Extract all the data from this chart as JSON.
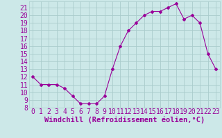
{
  "x": [
    0,
    1,
    2,
    3,
    4,
    5,
    6,
    7,
    8,
    9,
    10,
    11,
    12,
    13,
    14,
    15,
    16,
    17,
    18,
    19,
    20,
    21,
    22,
    23
  ],
  "y": [
    12,
    11,
    11,
    11,
    10.5,
    9.5,
    8.5,
    8.5,
    8.5,
    9.5,
    13,
    16,
    18,
    19,
    20,
    20.5,
    20.5,
    21,
    21.5,
    19.5,
    20,
    19,
    15,
    13
  ],
  "line_color": "#990099",
  "marker": "D",
  "marker_size": 2.0,
  "bg_color": "#cce8e8",
  "grid_color": "#aacccc",
  "xlabel": "Windchill (Refroidissement éolien,°C)",
  "xlabel_color": "#990099",
  "xlabel_fontsize": 7.5,
  "tick_color": "#990099",
  "tick_fontsize": 7,
  "ylim": [
    8,
    21.8
  ],
  "xlim": [
    -0.5,
    23.5
  ],
  "yticks": [
    8,
    9,
    10,
    11,
    12,
    13,
    14,
    15,
    16,
    17,
    18,
    19,
    20,
    21
  ],
  "xticks": [
    0,
    1,
    2,
    3,
    4,
    5,
    6,
    7,
    8,
    9,
    10,
    11,
    12,
    13,
    14,
    15,
    16,
    17,
    18,
    19,
    20,
    21,
    22,
    23
  ]
}
